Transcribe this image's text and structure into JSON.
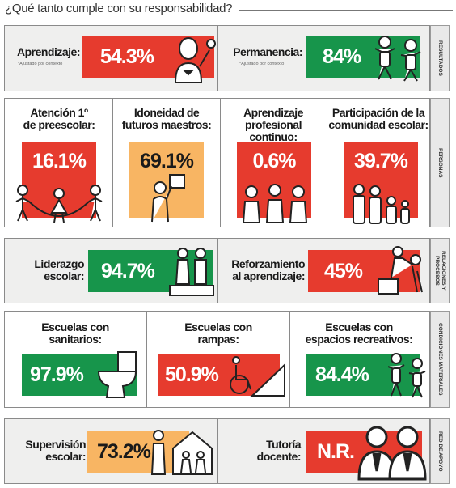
{
  "title": "¿Qué tanto cumple con su responsabilidad?",
  "colors": {
    "red": "#e63b2e",
    "green": "#17954b",
    "orange": "#f8b563"
  },
  "sections": {
    "resultados": "RESULTADOS",
    "personas": "PERSONAS",
    "relaciones": "RELACIONES Y PROCESOS",
    "condiciones": "CONDICIONES MATERIALES",
    "red_apoyo": "RED DE APOYO"
  },
  "indicators": {
    "aprendizaje": {
      "label": "Aprendizaje:",
      "note": "*Ajustado por contexto",
      "value": "54.3%",
      "icon": "student-flower-icon"
    },
    "permanencia": {
      "label": "Permanencia:",
      "note": "*Ajustado por contexto",
      "value": "84%",
      "icon": "children-jumping-icon"
    },
    "atencion": {
      "label_l1": "Atención 1º",
      "label_l2": "de preescolar:",
      "value": "16.1%",
      "icon": "children-jump-rope-icon"
    },
    "idoneidad": {
      "label_l1": "Idoneidad de",
      "label_l2": "futuros maestros:",
      "value": "69.1%",
      "icon": "teacher-board-icon"
    },
    "aprendizaje_prof": {
      "label_l1": "Aprendizaje",
      "label_l2": "profesional continuo:",
      "value": "0.6%",
      "icon": "teachers-group-icon"
    },
    "participacion": {
      "label_l1": "Participación de la",
      "label_l2": "comunidad escolar:",
      "value": "39.7%",
      "icon": "family-icon"
    },
    "liderazgo": {
      "label_l1": "Liderazgo",
      "label_l2": "escolar:",
      "value": "94.7%",
      "icon": "podium-icon"
    },
    "reforzamiento": {
      "label_l1": "Reforzamiento",
      "label_l2": "al aprendizaje:",
      "value": "45%",
      "icon": "helping-climb-icon"
    },
    "sanitarios": {
      "label_l1": "Escuelas con",
      "label_l2": "sanitarios:",
      "value": "97.9%",
      "icon": "toilet-icon"
    },
    "rampas": {
      "label_l1": "Escuelas con",
      "label_l2": "rampas:",
      "value": "50.9%",
      "icon": "wheelchair-ramp-icon"
    },
    "recreativos": {
      "label_l1": "Escuelas con",
      "label_l2": "espacios recreativos:",
      "value": "84.4%",
      "icon": "children-playing-icon"
    },
    "supervision": {
      "label_l1": "Supervisión",
      "label_l2": "escolar:",
      "value": "73.2%",
      "icon": "supervisor-school-icon"
    },
    "tutoria": {
      "label_l1": "Tutoría",
      "label_l2": "docente:",
      "value": "N.R.",
      "icon": "mentors-icon"
    }
  }
}
